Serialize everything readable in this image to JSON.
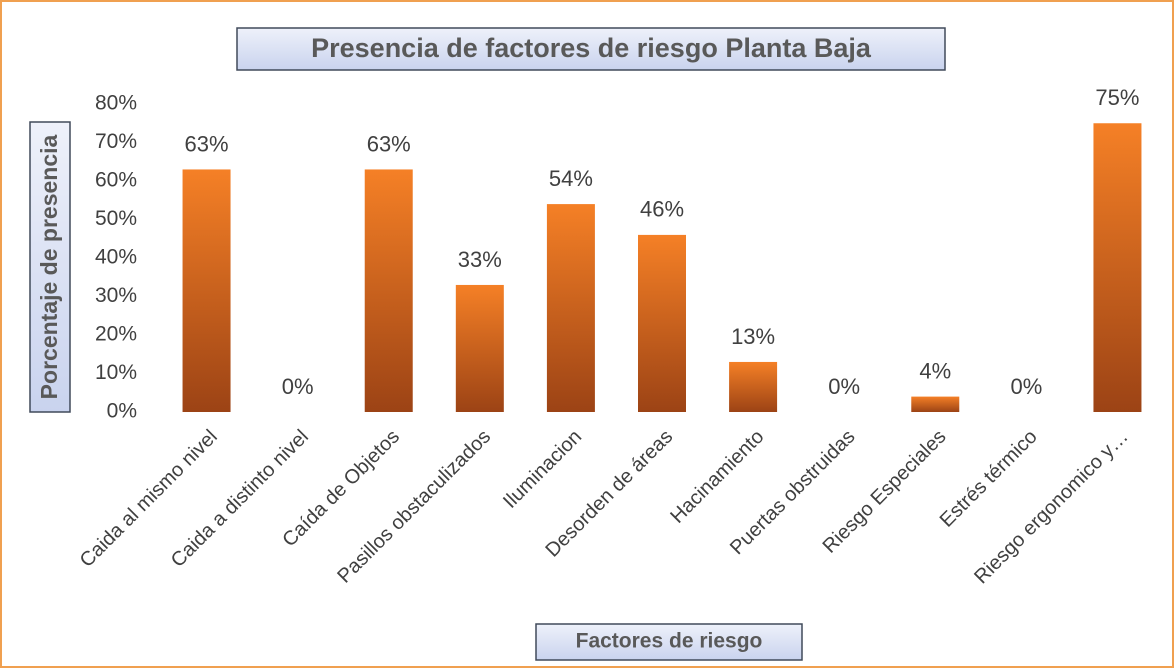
{
  "chart_data": {
    "type": "bar",
    "title": "Presencia de factores de riesgo Planta Baja",
    "y_label": "Porcentaje de presencia",
    "x_label": "Factores de riesgo",
    "categories": [
      "Caida al mismo nivel",
      "Caida a distinto nivel",
      "Caída de Objetos",
      "Pasillos obstaculizados",
      "Iluminacion",
      "Desorden de áreas",
      "Hacinamiento",
      "Puertas obstruidas",
      "Riesgo Especiales",
      "Estrés térmico",
      "Riesgo ergonomico y…"
    ],
    "values": [
      63,
      0,
      63,
      33,
      54,
      46,
      13,
      0,
      4,
      0,
      75
    ],
    "value_labels": [
      "63%",
      "0%",
      "63%",
      "33%",
      "54%",
      "46%",
      "13%",
      "0%",
      "4%",
      "0%",
      "75%"
    ],
    "color": "#f58026",
    "ylim": [
      0,
      80
    ],
    "yticks": [
      {
        "value": 0,
        "label": "0%"
      },
      {
        "value": 10,
        "label": "10%"
      },
      {
        "value": 20,
        "label": "20%"
      },
      {
        "value": 30,
        "label": "30%"
      },
      {
        "value": 40,
        "label": "40%"
      },
      {
        "value": 50,
        "label": "50%"
      },
      {
        "value": 60,
        "label": "60%"
      },
      {
        "value": 70,
        "label": "70%"
      },
      {
        "value": 80,
        "label": "80%"
      }
    ],
    "grid": false
  }
}
